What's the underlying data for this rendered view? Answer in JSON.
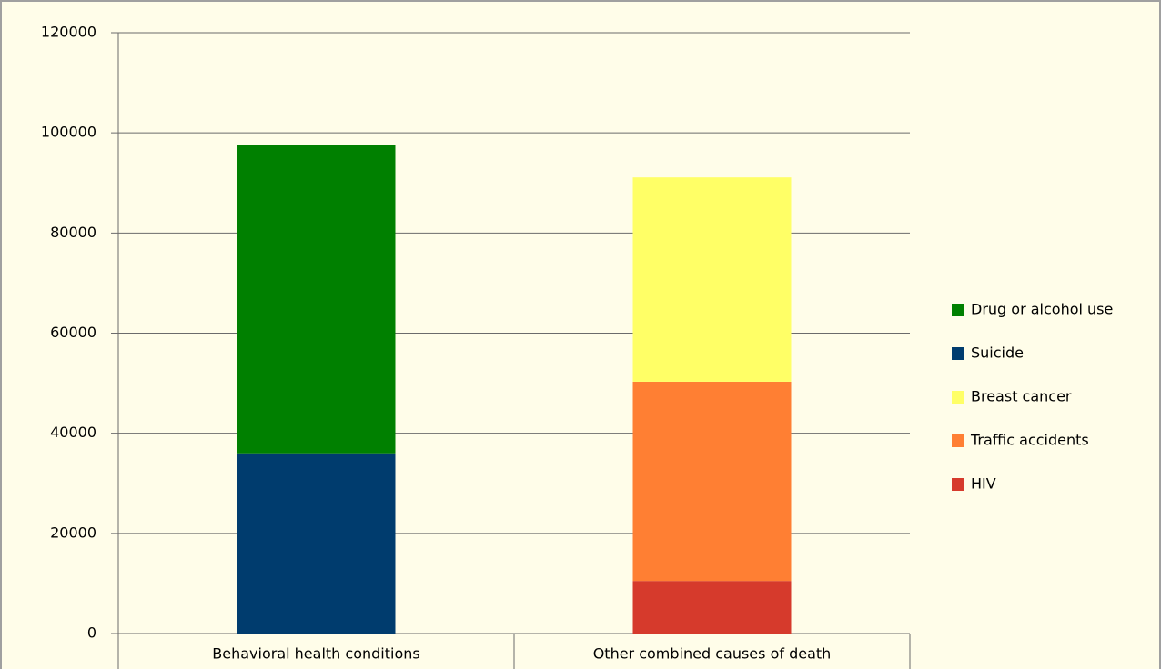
{
  "chart_data": {
    "type": "stacked_bar",
    "categories": [
      "Behavioral health conditions",
      "Other combined causes of death"
    ],
    "series": [
      {
        "name": "Drug or alcohol use",
        "color": "#008000",
        "values": [
          61500,
          null
        ]
      },
      {
        "name": "Suicide",
        "color": "#003c6e",
        "values": [
          36000,
          null
        ]
      },
      {
        "name": "Breast cancer",
        "color": "#ffff66",
        "values": [
          null,
          40800
        ]
      },
      {
        "name": "Traffic accidents",
        "color": "#ff7f33",
        "values": [
          null,
          39800
        ]
      },
      {
        "name": "HIV",
        "color": "#d63a2c",
        "values": [
          null,
          10500
        ]
      }
    ],
    "ylim": [
      0,
      120000
    ],
    "yticks": [
      0,
      20000,
      40000,
      60000,
      80000,
      100000,
      120000
    ],
    "grid": true,
    "legend": "right"
  }
}
